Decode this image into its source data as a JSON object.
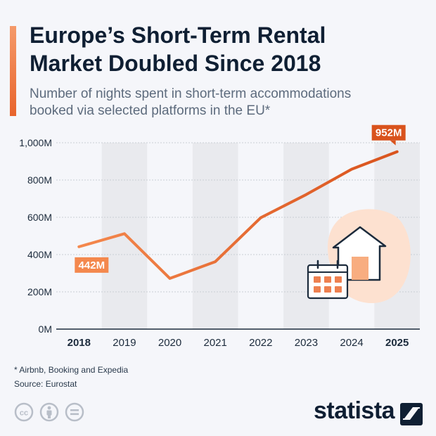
{
  "header": {
    "title_line1": "Europe’s Short-Term Rental",
    "title_line2": "Market Doubled Since 2018",
    "subtitle_line1": "Number of nights spent in short-term accommodations",
    "subtitle_line2": "booked via selected platforms in the EU*"
  },
  "colors": {
    "accent": "#e8642c",
    "accent_light": "#f4884d",
    "text": "#0f1f33",
    "band": "#e9eaee",
    "background": "#f5f6fa"
  },
  "chart_data": {
    "type": "line",
    "title": "Europe’s Short-Term Rental Market Doubled Since 2018",
    "x": [
      "2018",
      "2019",
      "2020",
      "2021",
      "2022",
      "2023",
      "2024",
      "2025"
    ],
    "series": [
      {
        "values": [
          442,
          512,
          272,
          362,
          598,
          722,
          858,
          952
        ]
      }
    ],
    "ylim": [
      0,
      1000
    ],
    "yticks": [
      0,
      200,
      400,
      600,
      800,
      1000
    ],
    "ytick_labels": [
      "0M",
      "200M",
      "400M",
      "600M",
      "800M",
      "1,000M"
    ],
    "grid": true,
    "annotations": [
      {
        "x": "2018",
        "label": "442M"
      },
      {
        "x": "2025",
        "label": "952M"
      }
    ],
    "bold_ticks": [
      "2018",
      "2025"
    ]
  },
  "footer": {
    "note": "* Airbnb, Booking and Expedia",
    "source": "Source: Eurostat",
    "brand": "statista",
    "icons": [
      "creative-commons-icon",
      "attribution-icon",
      "no-derivatives-icon"
    ]
  }
}
